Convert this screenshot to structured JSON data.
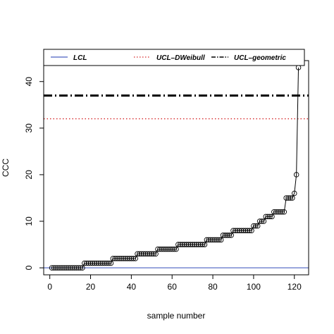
{
  "chart_data": {
    "type": "line",
    "title": "",
    "xlabel": "sample number",
    "ylabel": "CCC",
    "xlim": [
      -3,
      127
    ],
    "ylim": [
      -1.5,
      44.5
    ],
    "x_ticks": [
      0,
      20,
      40,
      60,
      80,
      100,
      120
    ],
    "y_ticks": [
      0,
      10,
      20,
      30,
      40
    ],
    "grid": false,
    "legend_position": "top",
    "series": [
      {
        "name": "",
        "color": "#000000",
        "marker": "circle",
        "runs": [
          {
            "from": 1,
            "to": 16,
            "value": 0
          },
          {
            "from": 17,
            "to": 30,
            "value": 1
          },
          {
            "from": 31,
            "to": 42,
            "value": 2
          },
          {
            "from": 43,
            "to": 52,
            "value": 3
          },
          {
            "from": 53,
            "to": 62,
            "value": 4
          },
          {
            "from": 63,
            "to": 76,
            "value": 5
          },
          {
            "from": 77,
            "to": 84,
            "value": 6
          },
          {
            "from": 85,
            "to": 89,
            "value": 7
          },
          {
            "from": 90,
            "to": 99,
            "value": 8
          },
          {
            "from": 100,
            "to": 102,
            "value": 9
          },
          {
            "from": 103,
            "to": 105,
            "value": 10
          },
          {
            "from": 106,
            "to": 109,
            "value": 11
          },
          {
            "from": 110,
            "to": 115,
            "value": 12
          },
          {
            "from": 116,
            "to": 119,
            "value": 15
          },
          {
            "from": 120,
            "to": 120,
            "value": 16
          },
          {
            "from": 121,
            "to": 121,
            "value": 20
          },
          {
            "from": 122,
            "to": 122,
            "value": 43
          }
        ]
      },
      {
        "name": "LCL",
        "value": 0,
        "style": "solid",
        "color": "#4a5fc1"
      },
      {
        "name": "UCL–DWeibull",
        "value": 32,
        "style": "dotted",
        "color": "#d62728"
      },
      {
        "name": "UCL–geometric",
        "value": 37,
        "style": "dashdot",
        "color": "#000000"
      }
    ]
  }
}
